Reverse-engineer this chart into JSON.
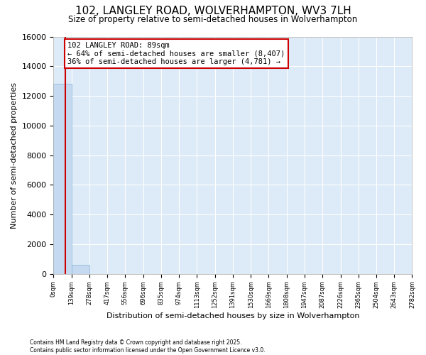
{
  "title": "102, LANGLEY ROAD, WOLVERHAMPTON, WV3 7LH",
  "subtitle": "Size of property relative to semi-detached houses in Wolverhampton",
  "xlabel": "Distribution of semi-detached houses by size in Wolverhampton",
  "ylabel": "Number of semi-detached properties",
  "property_size": 89,
  "annotation_line1": "102 LANGLEY ROAD: 89sqm",
  "annotation_line2": "← 64% of semi-detached houses are smaller (8,407)",
  "annotation_line3": "36% of semi-detached houses are larger (4,781) →",
  "footer_line1": "Contains HM Land Registry data © Crown copyright and database right 2025.",
  "footer_line2": "Contains public sector information licensed under the Open Government Licence v3.0.",
  "bin_edges": [
    0,
    139,
    278,
    417,
    556,
    696,
    835,
    974,
    1113,
    1252,
    1391,
    1530,
    1669,
    1808,
    1947,
    2087,
    2226,
    2365,
    2504,
    2643,
    2782
  ],
  "bar_heights": [
    12800,
    580,
    0,
    0,
    0,
    0,
    0,
    0,
    0,
    0,
    0,
    0,
    0,
    0,
    0,
    0,
    0,
    0,
    0,
    0
  ],
  "bar_color": "#c5daf0",
  "bar_edge_color": "#8ab4d8",
  "red_color": "#cc0000",
  "bg_color": "#ddeaf7",
  "ylim": [
    0,
    16000
  ],
  "yticks": [
    0,
    2000,
    4000,
    6000,
    8000,
    10000,
    12000,
    14000,
    16000
  ],
  "tick_labels": [
    "0sqm",
    "139sqm",
    "278sqm",
    "417sqm",
    "556sqm",
    "696sqm",
    "835sqm",
    "974sqm",
    "1113sqm",
    "1252sqm",
    "1391sqm",
    "1530sqm",
    "1669sqm",
    "1808sqm",
    "1947sqm",
    "2087sqm",
    "2226sqm",
    "2365sqm",
    "2504sqm",
    "2643sqm",
    "2782sqm"
  ]
}
